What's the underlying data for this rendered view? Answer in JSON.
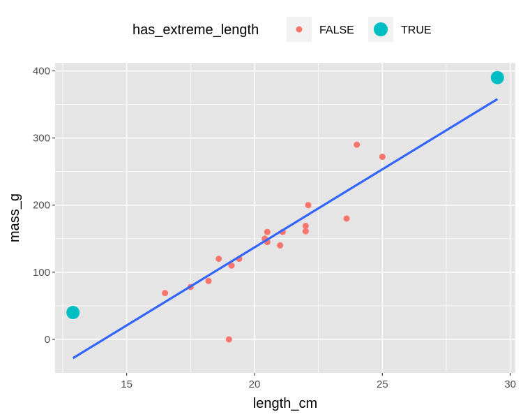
{
  "chart_data": {
    "type": "scatter",
    "xlabel": "length_cm",
    "ylabel": "mass_g",
    "xlim": [
      12.2,
      30.2
    ],
    "ylim": [
      -50,
      412
    ],
    "x_ticks": [
      15,
      20,
      25,
      30
    ],
    "y_ticks": [
      0,
      100,
      200,
      300,
      400
    ],
    "grid": true,
    "legend_position": "top",
    "legend": {
      "title": "has_extreme_length",
      "entries": [
        {
          "label": "FALSE",
          "color": "#F8766D"
        },
        {
          "label": "TRUE",
          "color": "#00BFC4"
        }
      ]
    },
    "series": [
      {
        "name": "FALSE",
        "color": "#F8766D",
        "points": [
          {
            "x": 16.5,
            "y": 69
          },
          {
            "x": 17.5,
            "y": 78
          },
          {
            "x": 18.2,
            "y": 87
          },
          {
            "x": 18.6,
            "y": 120
          },
          {
            "x": 19.0,
            "y": 0
          },
          {
            "x": 19.1,
            "y": 110
          },
          {
            "x": 19.4,
            "y": 120
          },
          {
            "x": 20.4,
            "y": 150
          },
          {
            "x": 20.5,
            "y": 145
          },
          {
            "x": 20.5,
            "y": 160
          },
          {
            "x": 21.0,
            "y": 140
          },
          {
            "x": 21.1,
            "y": 160
          },
          {
            "x": 22.0,
            "y": 169
          },
          {
            "x": 22.0,
            "y": 161
          },
          {
            "x": 22.1,
            "y": 200
          },
          {
            "x": 23.6,
            "y": 180
          },
          {
            "x": 24.0,
            "y": 290
          },
          {
            "x": 25.0,
            "y": 272
          }
        ]
      },
      {
        "name": "TRUE",
        "color": "#00BFC4",
        "points": [
          {
            "x": 12.9,
            "y": 40
          },
          {
            "x": 29.5,
            "y": 390
          }
        ]
      }
    ],
    "trend_line": {
      "color": "#3366FF",
      "from": {
        "x": 12.9,
        "y": -28
      },
      "to": {
        "x": 29.5,
        "y": 358
      }
    },
    "colors": {
      "panel_background": "#E5E5E5",
      "grid": "#FFFFFF"
    }
  }
}
